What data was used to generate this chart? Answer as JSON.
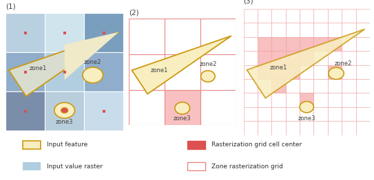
{
  "panel1_label": "(1)",
  "panel2_label": "(2)",
  "panel3_label": "(3)",
  "colors": {
    "orange_edge": "#CC9910",
    "orange_fill": "#F8EEC0",
    "tri_fill_p1_left": "#C0CCC0",
    "tri_fill_p1_right": "#F0EAC0",
    "raster_tl": "#B8D0E0",
    "raster_tc": "#D0E4EE",
    "raster_tr": "#7A9EBE",
    "raster_ml": "#90AECB",
    "raster_mc": "#B0CEDF",
    "raster_mr": "#90AECB",
    "raster_bl": "#7A8EAA",
    "raster_bc": "#B8CEDC",
    "raster_br": "#C8DCEC",
    "pink_edge": "#E88888",
    "pink_zone": "#F8C0C0",
    "red_dot": "#DC5050",
    "grid_pink": "#F0A0A0",
    "white": "#FFFFFF",
    "label_color": "#404040"
  }
}
